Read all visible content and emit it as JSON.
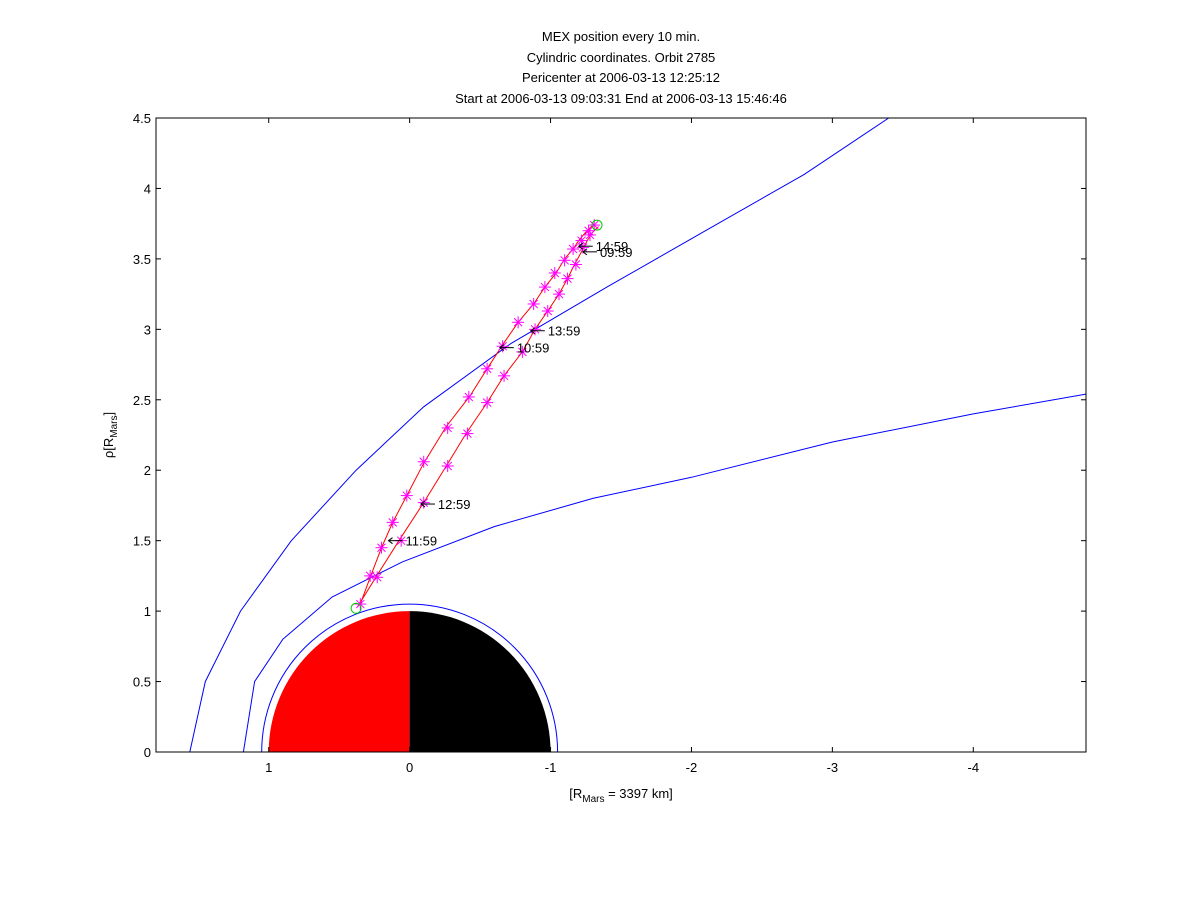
{
  "chart_data": {
    "type": "scatter",
    "title_lines": [
      "MEX position every 10 min.",
      "Cylindric coordinates. Orbit 2785",
      "Pericenter at 2006-03-13 12:25:12",
      "Start at 2006-03-13 09:03:31 End at 2006-03-13 15:46:46"
    ],
    "xlabel": {
      "prefix": "[R",
      "sub": "Mars",
      "suffix": " = 3397 km]"
    },
    "ylabel": {
      "prefix": "ρ[R",
      "sub": "Mars",
      "suffix": "]"
    },
    "xlim": [
      1.8,
      -4.8
    ],
    "ylim": [
      0,
      4.5
    ],
    "x_reversed": true,
    "x_ticks": [
      {
        "value": 1,
        "label": "1"
      },
      {
        "value": 0,
        "label": "0"
      },
      {
        "value": -1,
        "label": "-1"
      },
      {
        "value": -2,
        "label": "-2"
      },
      {
        "value": -3,
        "label": "-3"
      },
      {
        "value": -4,
        "label": "-4"
      }
    ],
    "y_ticks": [
      {
        "value": 0,
        "label": "0"
      },
      {
        "value": 0.5,
        "label": "0.5"
      },
      {
        "value": 1,
        "label": "1"
      },
      {
        "value": 1.5,
        "label": "1.5"
      },
      {
        "value": 2,
        "label": "2"
      },
      {
        "value": 2.5,
        "label": "2.5"
      },
      {
        "value": 3,
        "label": "3"
      },
      {
        "value": 3.5,
        "label": "3.5"
      },
      {
        "value": 4,
        "label": "4"
      },
      {
        "value": 4.5,
        "label": "4.5"
      }
    ],
    "colors": {
      "boundary": "#0000ff",
      "orbit": "#ff0000",
      "marker": "#ff00ff",
      "endpoint": "#00cc00",
      "mars_dayside": "#ff0000",
      "mars_nightside": "#000000",
      "annotation": "#000000"
    },
    "boundaries": {
      "bow_shock": [
        [
          1.56,
          0
        ],
        [
          1.45,
          0.5
        ],
        [
          1.2,
          1.0
        ],
        [
          0.84,
          1.5
        ],
        [
          0.38,
          2.0
        ],
        [
          -0.1,
          2.45
        ],
        [
          -0.72,
          2.9
        ],
        [
          -1.4,
          3.3
        ],
        [
          -2.1,
          3.7
        ],
        [
          -2.8,
          4.1
        ],
        [
          -3.4,
          4.5
        ]
      ],
      "mpb": [
        [
          1.18,
          0
        ],
        [
          1.1,
          0.5
        ],
        [
          0.9,
          0.8
        ],
        [
          0.55,
          1.1
        ],
        [
          0.05,
          1.35
        ],
        [
          -0.6,
          1.6
        ],
        [
          -1.3,
          1.8
        ],
        [
          -2.0,
          1.95
        ],
        [
          -3.0,
          2.2
        ],
        [
          -4.0,
          2.4
        ],
        [
          -4.8,
          2.54
        ]
      ],
      "ionopause_radius": 1.05,
      "mars_radius": 1.0
    },
    "orbit_outbound": [
      [
        0.35,
        1.05
      ],
      [
        0.28,
        1.24
      ],
      [
        0.2,
        1.45
      ],
      [
        0.12,
        1.63
      ],
      [
        0.02,
        1.82
      ],
      [
        -0.1,
        2.05
      ],
      [
        -0.26,
        2.31
      ],
      [
        -0.43,
        2.53
      ],
      [
        -0.55,
        2.72
      ],
      [
        -0.66,
        2.89
      ],
      [
        -0.77,
        3.05
      ],
      [
        -0.88,
        3.18
      ],
      [
        -0.96,
        3.3
      ],
      [
        -1.04,
        3.4
      ],
      [
        -1.1,
        3.5
      ],
      [
        -1.16,
        3.57
      ],
      [
        -1.2,
        3.63
      ],
      [
        -1.25,
        3.69
      ],
      [
        -1.31,
        3.75
      ]
    ],
    "orbit_inbound": [
      [
        -1.34,
        3.73
      ],
      [
        -1.3,
        3.69
      ],
      [
        -1.26,
        3.63
      ],
      [
        -1.22,
        3.55
      ],
      [
        -1.17,
        3.46
      ],
      [
        -1.12,
        3.36
      ],
      [
        -1.06,
        3.25
      ],
      [
        -0.98,
        3.13
      ],
      [
        -0.89,
        3.0
      ],
      [
        -0.8,
        2.84
      ],
      [
        -0.67,
        2.67
      ],
      [
        -0.55,
        2.48
      ],
      [
        -0.4,
        2.26
      ],
      [
        -0.26,
        2.03
      ],
      [
        -0.1,
        1.77
      ],
      [
        0.07,
        1.51
      ],
      [
        0.24,
        1.24
      ],
      [
        0.37,
        1.03
      ]
    ],
    "markers": [
      [
        0.35,
        1.05
      ],
      [
        0.28,
        1.25
      ],
      [
        0.2,
        1.45
      ],
      [
        0.12,
        1.63
      ],
      [
        0.02,
        1.82
      ],
      [
        -0.1,
        2.06
      ],
      [
        -0.27,
        2.3
      ],
      [
        -0.42,
        2.52
      ],
      [
        -0.55,
        2.72
      ],
      [
        -0.66,
        2.88
      ],
      [
        -0.77,
        3.05
      ],
      [
        -0.88,
        3.18
      ],
      [
        -0.96,
        3.3
      ],
      [
        -1.03,
        3.4
      ],
      [
        -1.1,
        3.49
      ],
      [
        -1.16,
        3.57
      ],
      [
        -1.22,
        3.63
      ],
      [
        -1.27,
        3.7
      ],
      [
        -1.31,
        3.74
      ],
      [
        -1.28,
        3.67
      ],
      [
        -1.23,
        3.58
      ],
      [
        -1.18,
        3.46
      ],
      [
        -1.12,
        3.36
      ],
      [
        -1.06,
        3.25
      ],
      [
        -0.98,
        3.13
      ],
      [
        -0.89,
        3.0
      ],
      [
        -0.8,
        2.84
      ],
      [
        -0.67,
        2.67
      ],
      [
        -0.55,
        2.48
      ],
      [
        -0.41,
        2.26
      ],
      [
        -0.27,
        2.03
      ],
      [
        -0.1,
        1.77
      ],
      [
        0.06,
        1.5
      ],
      [
        0.23,
        1.24
      ]
    ],
    "endpoints": [
      [
        0.38,
        1.02
      ],
      [
        -1.33,
        3.74
      ]
    ],
    "annotations": [
      {
        "label": "14:59",
        "x": -1.2,
        "y": 3.59
      },
      {
        "label": "09:59",
        "x": -1.23,
        "y": 3.55
      },
      {
        "label": "13:59",
        "x": -0.86,
        "y": 2.99
      },
      {
        "label": "10:59",
        "x": -0.64,
        "y": 2.87
      },
      {
        "label": "12:59",
        "x": -0.08,
        "y": 1.76
      },
      {
        "label": "11:59",
        "x": 0.15,
        "y": 1.5
      }
    ]
  }
}
